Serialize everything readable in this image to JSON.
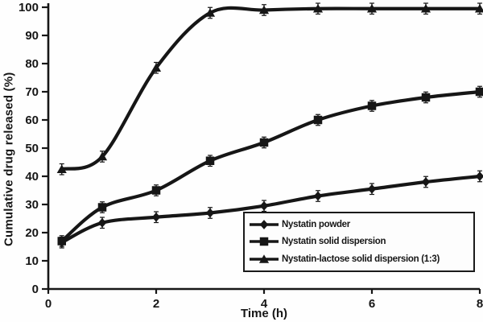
{
  "chart_data": {
    "type": "line",
    "title": "",
    "xlabel": "Time (h)",
    "ylabel": "Cumulative drug released (%)",
    "xlim": [
      0,
      8
    ],
    "ylim": [
      0,
      100
    ],
    "x_ticks": [
      "0",
      "2",
      "4",
      "6",
      "8"
    ],
    "y_ticks": [
      "0",
      "10",
      "20",
      "30",
      "40",
      "50",
      "60",
      "70",
      "80",
      "90",
      "100"
    ],
    "grid": false,
    "legend_position": "inside-bottom-right",
    "line_color": "#161616",
    "error_bar": 1.5,
    "x": [
      0.25,
      1,
      2,
      3,
      4,
      5,
      6,
      7,
      8
    ],
    "series": [
      {
        "name": "Nystatin powder",
        "marker": "diamond",
        "values": [
          16.5,
          23.5,
          25.5,
          27,
          29.5,
          33,
          35.5,
          38,
          40
        ]
      },
      {
        "name": "Nystatin solid dispersion",
        "marker": "square",
        "values": [
          17,
          29,
          35,
          45.5,
          52,
          60,
          65,
          68,
          70
        ]
      },
      {
        "name": "Nystatin-lactose solid dispersion (1:3)",
        "marker": "triangle",
        "values": [
          42.5,
          47,
          78.5,
          98,
          99,
          99.5,
          99.5,
          99.5,
          99.5
        ]
      }
    ]
  }
}
